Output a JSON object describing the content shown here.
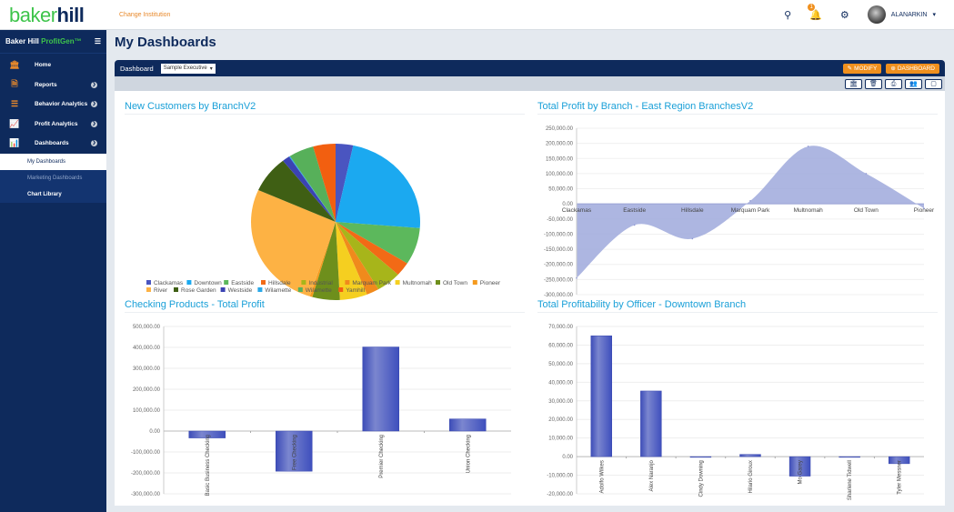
{
  "topbar": {
    "logo_part1": "baker",
    "logo_part2": "hill",
    "change_institution": "Change Institution",
    "notification_count": "1",
    "username": "ALANARKIN",
    "icons": [
      "search-icon",
      "bell-icon",
      "gear-icon"
    ]
  },
  "sidebar": {
    "app_name": "Baker Hill",
    "app_product": "ProfitGen™",
    "items": [
      {
        "label": "Home",
        "icon": "bank-icon"
      },
      {
        "label": "Reports",
        "icon": "report-icon"
      },
      {
        "label": "Behavior Analytics",
        "icon": "sliders-icon"
      },
      {
        "label": "Profit Analytics",
        "icon": "line-chart-icon"
      },
      {
        "label": "Dashboards",
        "icon": "bar-chart-icon"
      }
    ],
    "subitems": [
      {
        "label": "My Dashboards"
      },
      {
        "label": "Marketing Dashboards"
      },
      {
        "label": "Chart Library"
      }
    ]
  },
  "page": {
    "title": "My Dashboards",
    "dashboard_label": "Dashboard",
    "dashboard_selected": "Sample Executive",
    "modify_label": "MODIFY",
    "add_dashboard_label": "DASHBOARD"
  },
  "chart_data": [
    {
      "type": "pie",
      "title": "New Customers by BranchV2",
      "legend_position": "bottom",
      "categories": [
        "Clackamas",
        "Downtown",
        "Eastside",
        "Hillsdale",
        "Industrial",
        "Marquam Park",
        "Multnomah",
        "Old Town",
        "Pioneer",
        "River",
        "Rose Garden",
        "Westside",
        "Wilamette",
        "Wilamette",
        "Yamhill"
      ],
      "values": [
        3.5,
        24,
        8,
        3,
        5,
        2.5,
        5.5,
        5.5,
        0.5,
        28,
        8,
        1.5,
        0.2,
        5,
        4.5
      ],
      "colors": [
        "#4a55c0",
        "#1ba9f0",
        "#5cb85c",
        "#f26a16",
        "#a7b51a",
        "#f08a1c",
        "#f5cf20",
        "#6e8f1c",
        "#f59a1e",
        "#fdb244",
        "#3f5f14",
        "#3b43b3",
        "#2aa8e8",
        "#57b05a",
        "#f25f10"
      ]
    },
    {
      "type": "area",
      "title": "Total Profit by Branch - East Region BranchesV2",
      "categories": [
        "Clackamas",
        "Eastside",
        "Hillsdale",
        "Marquam Park",
        "Multnomah",
        "Old Town",
        "Pioneer"
      ],
      "values": [
        -245000,
        -70000,
        -115000,
        10000,
        190000,
        100000,
        -15000
      ],
      "ylim": [
        -300000,
        250000
      ],
      "yticks": [
        "250,000.00",
        "200,000.00",
        "150,000.00",
        "100,000.00",
        "50,000.00",
        "0.00",
        "-50,000.00",
        "-100,000.00",
        "-150,000.00",
        "-200,000.00",
        "-250,000.00",
        "-300,000.00"
      ],
      "color": "#9fa9dc",
      "grid": true
    },
    {
      "type": "bar",
      "title": "Checking Products - Total Profit",
      "categories": [
        "Basic Business Checking",
        "Free Checking",
        "Premier Checking",
        "Union Checking"
      ],
      "values": [
        -33000,
        -192000,
        402000,
        58000
      ],
      "ylim": [
        -300000,
        500000
      ],
      "yticks": [
        "500,000.00",
        "400,000.00",
        "300,000.00",
        "200,000.00",
        "100,000.00",
        "0.00",
        "-100,000.00",
        "-200,000.00",
        "-300,000.00"
      ],
      "color": "#4656c0",
      "grid": true
    },
    {
      "type": "bar",
      "title": "Total Profitability by Officer - Downtown Branch",
      "categories": [
        "Adolfo Wilkes",
        "Alex Naranjo",
        "Cindy Downing",
        "Hilario Giroux",
        "Mo Garey",
        "Sharlene Tidwell",
        "Tyler Messner"
      ],
      "values": [
        65000,
        35300,
        0,
        1200,
        -10500,
        -300,
        -3800
      ],
      "ylim": [
        -20000,
        70000
      ],
      "yticks": [
        "70,000.00",
        "60,000.00",
        "50,000.00",
        "40,000.00",
        "30,000.00",
        "20,000.00",
        "10,000.00",
        "0.00",
        "-10,000.00",
        "-20,000.00"
      ],
      "color": "#4656c0",
      "grid": true
    }
  ]
}
